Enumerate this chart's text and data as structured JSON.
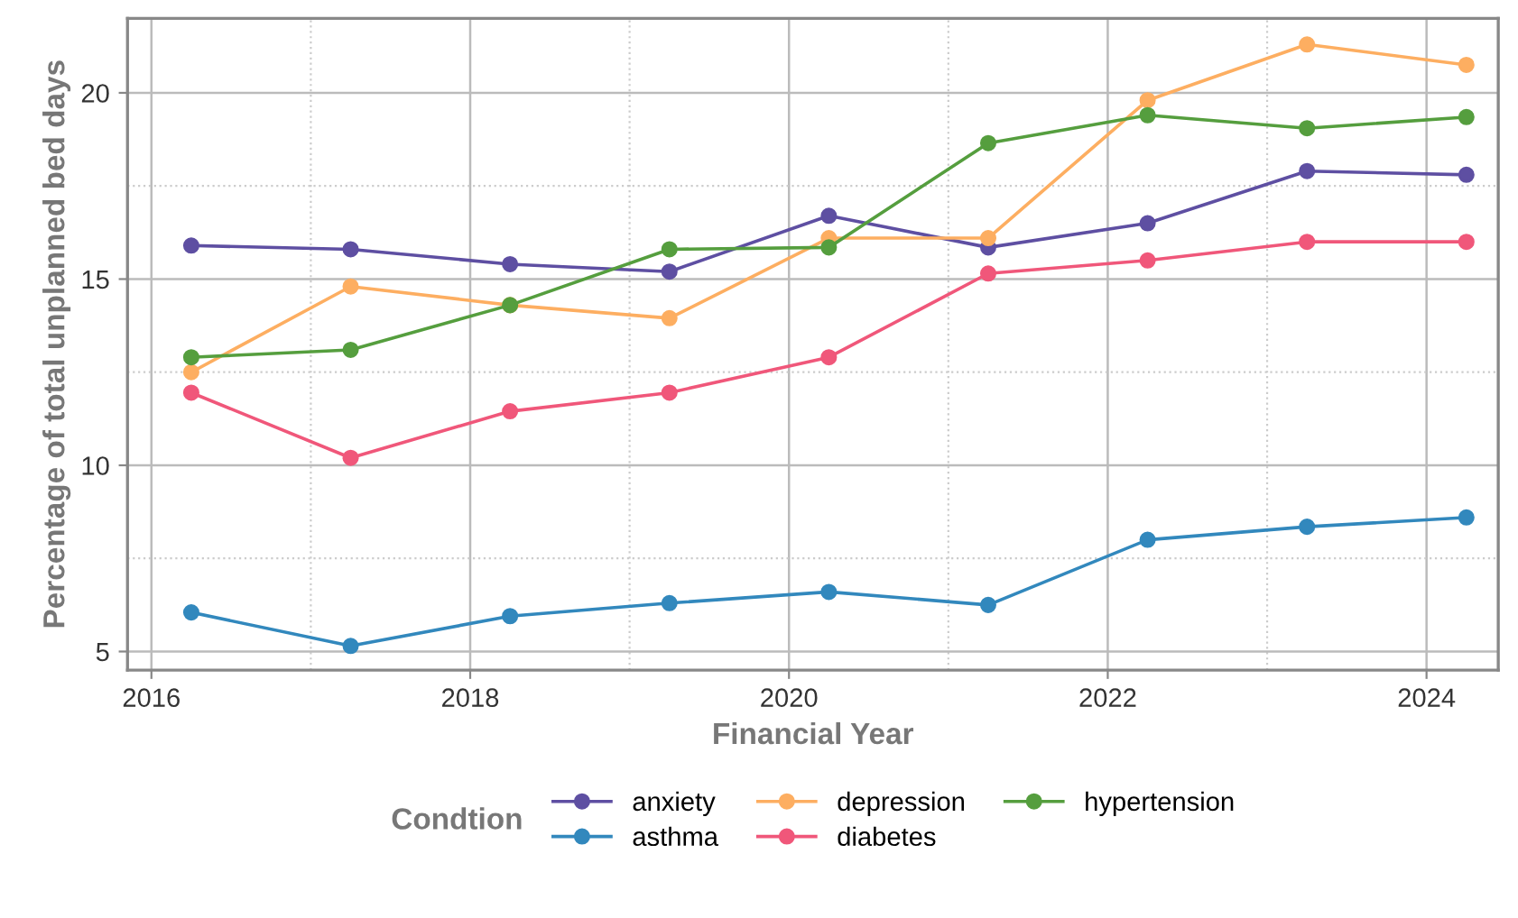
{
  "chart_data": {
    "type": "line",
    "xlabel": "Financial Year",
    "ylabel": "Percentage of total unplanned bed days",
    "legend_title": "Condtion",
    "x": [
      2016.25,
      2017.25,
      2018.25,
      2019.25,
      2020.25,
      2021.25,
      2022.25,
      2023.25,
      2024.25
    ],
    "series": [
      {
        "name": "anxiety",
        "color": "#5e4fa2",
        "values": [
          15.9,
          15.8,
          15.4,
          15.2,
          16.7,
          15.85,
          16.5,
          17.9,
          17.8
        ]
      },
      {
        "name": "asthma",
        "color": "#3288bd",
        "values": [
          6.05,
          5.15,
          5.95,
          6.3,
          6.6,
          6.25,
          8.0,
          8.35,
          8.6
        ]
      },
      {
        "name": "depression",
        "color": "#fdae61",
        "values": [
          12.5,
          14.8,
          14.3,
          13.95,
          16.1,
          16.1,
          19.8,
          21.3,
          20.75
        ]
      },
      {
        "name": "diabetes",
        "color": "#f0577a",
        "values": [
          11.95,
          10.2,
          11.45,
          11.95,
          12.9,
          15.15,
          15.5,
          16.0,
          16.0
        ]
      },
      {
        "name": "hypertension",
        "color": "#559e3e",
        "values": [
          12.9,
          13.1,
          14.3,
          15.8,
          15.85,
          18.65,
          19.4,
          19.05,
          19.35
        ]
      }
    ],
    "xlim": [
      2015.85,
      2024.45
    ],
    "ylim": [
      4.5,
      22.0
    ],
    "xticks": [
      2016,
      {
        "value": 2017,
        "label": null
      },
      2018,
      {
        "value": 2019,
        "label": null
      },
      2020,
      {
        "value": 2021,
        "label": null
      },
      2022,
      {
        "value": 2023,
        "label": null
      },
      2024
    ],
    "yticks": [
      5,
      {
        "value": 7.5,
        "label": null
      },
      10,
      {
        "value": 12.5,
        "label": null
      },
      15,
      {
        "value": 17.5,
        "label": null
      },
      20
    ],
    "grid": true,
    "legend": "bottom",
    "marker": "circle",
    "line_style": "solid"
  }
}
